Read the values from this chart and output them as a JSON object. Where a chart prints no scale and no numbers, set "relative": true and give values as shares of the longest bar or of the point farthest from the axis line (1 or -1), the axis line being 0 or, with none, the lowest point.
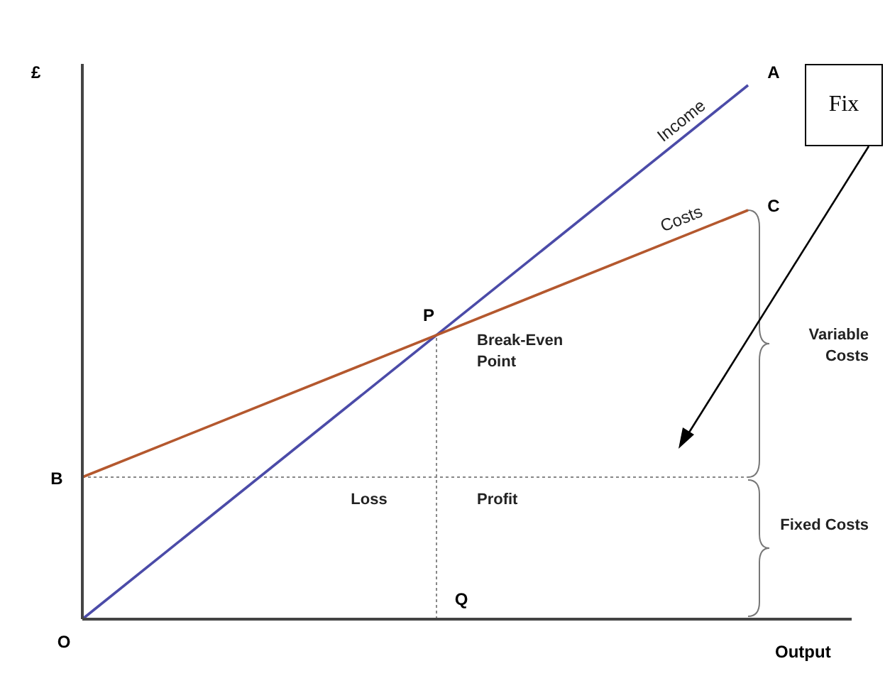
{
  "chart_data": {
    "type": "line",
    "relative": true,
    "xlabel": "Output",
    "ylabel": "£",
    "categories": [
      null,
      null
    ],
    "series": [
      {
        "name": "Income",
        "color": "#4b4ba8",
        "values": [
          0,
          1
        ]
      },
      {
        "name": "Costs",
        "color": "#b4582e",
        "values": [
          0.266,
          0.766
        ]
      }
    ],
    "ref_lines": [
      {
        "axis": "y",
        "value": 0.266,
        "color": "#888888",
        "line_style": "dotted"
      }
    ],
    "annotations": [
      "O",
      "A",
      "B",
      "C",
      {
        "text": "P",
        "y": 0.533
      },
      "Q",
      "Break-Even Point",
      "Loss",
      "Profit",
      "Variable Costs",
      "Fixed Costs",
      "Fix"
    ],
    "marker": "none",
    "line_style": "solid",
    "grid": false,
    "legend": false
  }
}
